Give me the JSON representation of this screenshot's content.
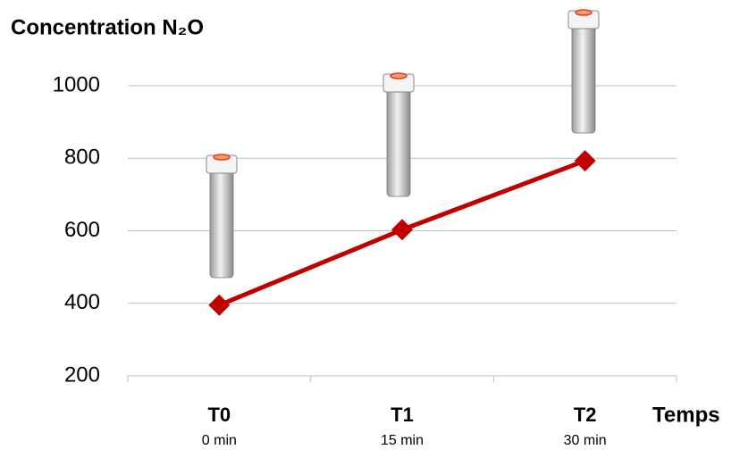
{
  "chart_data": {
    "type": "line",
    "title": "Concentration N₂O",
    "x_label": "Temps",
    "categories": [
      "T0",
      "T1",
      "T2"
    ],
    "category_sublabels": [
      "0 min",
      "15 min",
      "30 min"
    ],
    "series": [
      {
        "name": "N₂O",
        "color": "#c00000",
        "values": [
          395,
          603,
          793
        ]
      }
    ],
    "ylim": [
      200,
      1000
    ],
    "yticks": [
      200,
      400,
      600,
      800,
      1000
    ],
    "grid": true
  }
}
